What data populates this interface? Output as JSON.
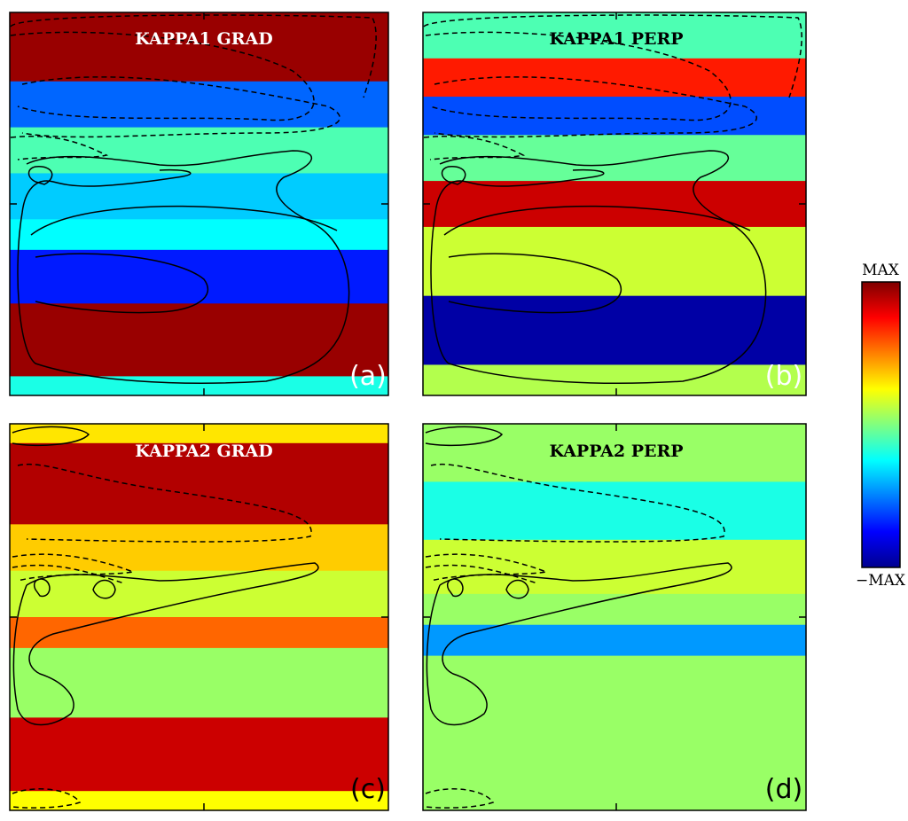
{
  "chart_data": [
    {
      "type": "heatmap",
      "title": "KAPPA1 GRAD",
      "panel_label": "(a)",
      "bands": [
        {
          "y_from": 0.0,
          "y_to": 0.18,
          "value": 0.95
        },
        {
          "y_from": 0.18,
          "y_to": 0.3,
          "value": -0.55
        },
        {
          "y_from": 0.3,
          "y_to": 0.42,
          "value": -0.1
        },
        {
          "y_from": 0.42,
          "y_to": 0.54,
          "value": -0.35
        },
        {
          "y_from": 0.54,
          "y_to": 0.62,
          "value": -0.25
        },
        {
          "y_from": 0.62,
          "y_to": 0.76,
          "value": -0.7
        },
        {
          "y_from": 0.76,
          "y_to": 0.95,
          "value": 0.95
        },
        {
          "y_from": 0.95,
          "y_to": 1.0,
          "value": -0.2
        }
      ]
    },
    {
      "type": "heatmap",
      "title": "KAPPA1 PERP",
      "panel_label": "(b)",
      "bands": [
        {
          "y_from": 0.0,
          "y_to": 0.12,
          "value": -0.1
        },
        {
          "y_from": 0.12,
          "y_to": 0.22,
          "value": 0.7
        },
        {
          "y_from": 0.22,
          "y_to": 0.32,
          "value": -0.6
        },
        {
          "y_from": 0.32,
          "y_to": 0.44,
          "value": -0.05
        },
        {
          "y_from": 0.44,
          "y_to": 0.56,
          "value": 0.85
        },
        {
          "y_from": 0.56,
          "y_to": 0.74,
          "value": 0.15
        },
        {
          "y_from": 0.74,
          "y_to": 0.92,
          "value": -0.95
        },
        {
          "y_from": 0.92,
          "y_to": 1.0,
          "value": 0.1
        }
      ]
    },
    {
      "type": "heatmap",
      "title": "KAPPA2 GRAD",
      "panel_label": "(c)",
      "bands": [
        {
          "y_from": 0.0,
          "y_to": 0.05,
          "value": 0.3
        },
        {
          "y_from": 0.05,
          "y_to": 0.26,
          "value": 0.9
        },
        {
          "y_from": 0.26,
          "y_to": 0.38,
          "value": 0.35
        },
        {
          "y_from": 0.38,
          "y_to": 0.5,
          "value": 0.15
        },
        {
          "y_from": 0.5,
          "y_to": 0.58,
          "value": 0.55
        },
        {
          "y_from": 0.58,
          "y_to": 0.76,
          "value": 0.05
        },
        {
          "y_from": 0.76,
          "y_to": 0.95,
          "value": 0.85
        },
        {
          "y_from": 0.95,
          "y_to": 1.0,
          "value": 0.25
        }
      ]
    },
    {
      "type": "heatmap",
      "title": "KAPPA2 PERP",
      "panel_label": "(d)",
      "bands": [
        {
          "y_from": 0.0,
          "y_to": 0.15,
          "value": 0.05
        },
        {
          "y_from": 0.15,
          "y_to": 0.3,
          "value": -0.2
        },
        {
          "y_from": 0.3,
          "y_to": 0.44,
          "value": 0.15
        },
        {
          "y_from": 0.44,
          "y_to": 0.52,
          "value": 0.05
        },
        {
          "y_from": 0.52,
          "y_to": 0.6,
          "value": -0.45
        },
        {
          "y_from": 0.6,
          "y_to": 1.0,
          "value": 0.05
        }
      ]
    }
  ],
  "colorbar": {
    "max_label": "MAX",
    "min_label": "−MAX",
    "colors": [
      "#7f0000",
      "#ff0000",
      "#ff8000",
      "#ffff00",
      "#80ff80",
      "#00ffff",
      "#0080ff",
      "#0000ff",
      "#00008f"
    ]
  }
}
